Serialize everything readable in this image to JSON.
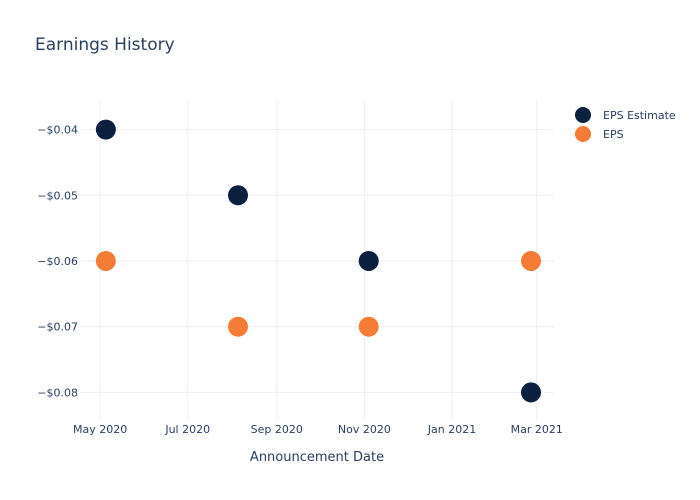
{
  "chart_data": {
    "type": "scatter",
    "title": "Earnings History",
    "xlabel": "Announcement Date",
    "ylabel": "",
    "x_ticks": [
      {
        "date": "2020-05-01",
        "label": "May 2020"
      },
      {
        "date": "2020-07-01",
        "label": "Jul 2020"
      },
      {
        "date": "2020-09-01",
        "label": "Sep 2020"
      },
      {
        "date": "2020-11-01",
        "label": "Nov 2020"
      },
      {
        "date": "2021-01-01",
        "label": "Jan 2021"
      },
      {
        "date": "2021-03-01",
        "label": "Mar 2021"
      }
    ],
    "y_ticks": [
      {
        "value": -0.04,
        "label": "−$0.04"
      },
      {
        "value": -0.05,
        "label": "−$0.05"
      },
      {
        "value": -0.06,
        "label": "−$0.06"
      },
      {
        "value": -0.07,
        "label": "−$0.07"
      },
      {
        "value": -0.08,
        "label": "−$0.08"
      }
    ],
    "xlim": [
      "2020-04-17",
      "2021-03-13"
    ],
    "ylim": [
      -0.0842,
      -0.0355
    ],
    "grid": true,
    "legend_position": "top-right",
    "series": [
      {
        "name": "EPS Estimate",
        "color": "#0b1f3f",
        "points": [
          {
            "x": "2020-05-05",
            "y": -0.04
          },
          {
            "x": "2020-08-05",
            "y": -0.05
          },
          {
            "x": "2020-11-04",
            "y": -0.06
          },
          {
            "x": "2021-02-25",
            "y": -0.08
          }
        ]
      },
      {
        "name": "EPS",
        "color": "#f47c36",
        "points": [
          {
            "x": "2020-05-05",
            "y": -0.06
          },
          {
            "x": "2020-08-05",
            "y": -0.07
          },
          {
            "x": "2020-11-04",
            "y": -0.07
          },
          {
            "x": "2021-02-25",
            "y": -0.06
          }
        ]
      }
    ]
  }
}
